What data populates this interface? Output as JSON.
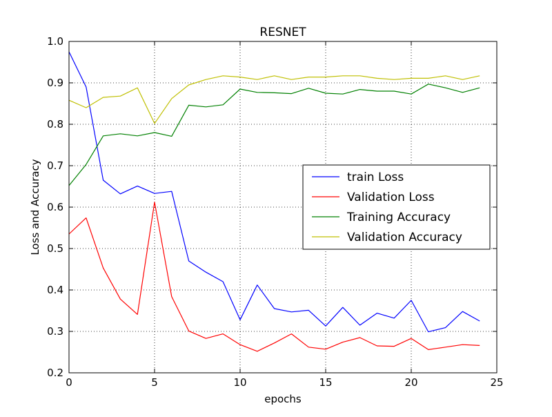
{
  "chart_data": {
    "type": "line",
    "title": "RESNET",
    "xlabel": "epochs",
    "ylabel": "Loss and Accuracy",
    "xlim": [
      0,
      25
    ],
    "ylim": [
      0.2,
      1.0
    ],
    "x_ticks": [
      "0",
      "5",
      "10",
      "15",
      "20",
      "25"
    ],
    "y_ticks": [
      "0.2",
      "0.3",
      "0.4",
      "0.5",
      "0.6",
      "0.7",
      "0.8",
      "0.9",
      "1.0"
    ],
    "grid": true,
    "legend_position": "center-right",
    "x": [
      0,
      1,
      2,
      3,
      4,
      5,
      6,
      7,
      8,
      9,
      10,
      11,
      12,
      13,
      14,
      15,
      16,
      17,
      18,
      19,
      20,
      21,
      22,
      23,
      24
    ],
    "series": [
      {
        "name": "train Loss",
        "color": "#0000ff",
        "values": [
          0.975,
          0.89,
          0.665,
          0.632,
          0.651,
          0.633,
          0.638,
          0.47,
          0.443,
          0.42,
          0.328,
          0.412,
          0.355,
          0.347,
          0.351,
          0.313,
          0.358,
          0.315,
          0.344,
          0.332,
          0.375,
          0.299,
          0.309,
          0.348,
          0.325
        ]
      },
      {
        "name": "Validation Loss",
        "color": "#ff0000",
        "values": [
          0.535,
          0.574,
          0.453,
          0.378,
          0.341,
          0.612,
          0.384,
          0.301,
          0.283,
          0.294,
          0.268,
          0.252,
          0.272,
          0.294,
          0.262,
          0.257,
          0.274,
          0.285,
          0.265,
          0.264,
          0.283,
          0.256,
          0.262,
          0.268,
          0.266
        ]
      },
      {
        "name": "Training Accuracy",
        "color": "#008000",
        "values": [
          0.652,
          0.703,
          0.772,
          0.777,
          0.772,
          0.78,
          0.771,
          0.846,
          0.842,
          0.847,
          0.885,
          0.877,
          0.876,
          0.874,
          0.887,
          0.875,
          0.873,
          0.884,
          0.88,
          0.88,
          0.873,
          0.897,
          0.888,
          0.877,
          0.888
        ]
      },
      {
        "name": "Validation Accuracy",
        "color": "#bfbf00",
        "values": [
          0.858,
          0.84,
          0.865,
          0.868,
          0.888,
          0.802,
          0.862,
          0.895,
          0.908,
          0.917,
          0.914,
          0.908,
          0.917,
          0.908,
          0.914,
          0.914,
          0.917,
          0.917,
          0.911,
          0.908,
          0.911,
          0.911,
          0.917,
          0.908,
          0.917
        ]
      }
    ]
  }
}
